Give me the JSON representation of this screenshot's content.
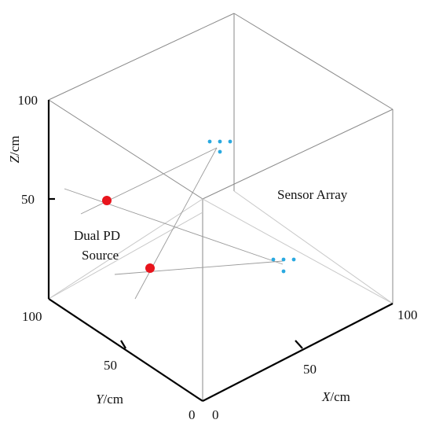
{
  "diagram": {
    "axes": {
      "z": {
        "label_var": "Z",
        "label_unit": "/cm",
        "ticks": [
          "100",
          "50"
        ]
      },
      "y": {
        "label_var": "Y",
        "label_unit": "/cm",
        "ticks": [
          "100",
          "50",
          "0"
        ]
      },
      "x": {
        "label_var": "X",
        "label_unit": "/cm",
        "ticks": [
          "0",
          "50",
          "100"
        ]
      }
    },
    "annotations": {
      "sensor_array": "Sensor Array",
      "source_line1": "Dual PD",
      "source_line2": "Source"
    },
    "colors": {
      "source": "#e8141c",
      "sensor": "#29a9e0"
    },
    "sensor_groups": 2,
    "sensors_per_group": 4,
    "pd_sources": 2
  }
}
